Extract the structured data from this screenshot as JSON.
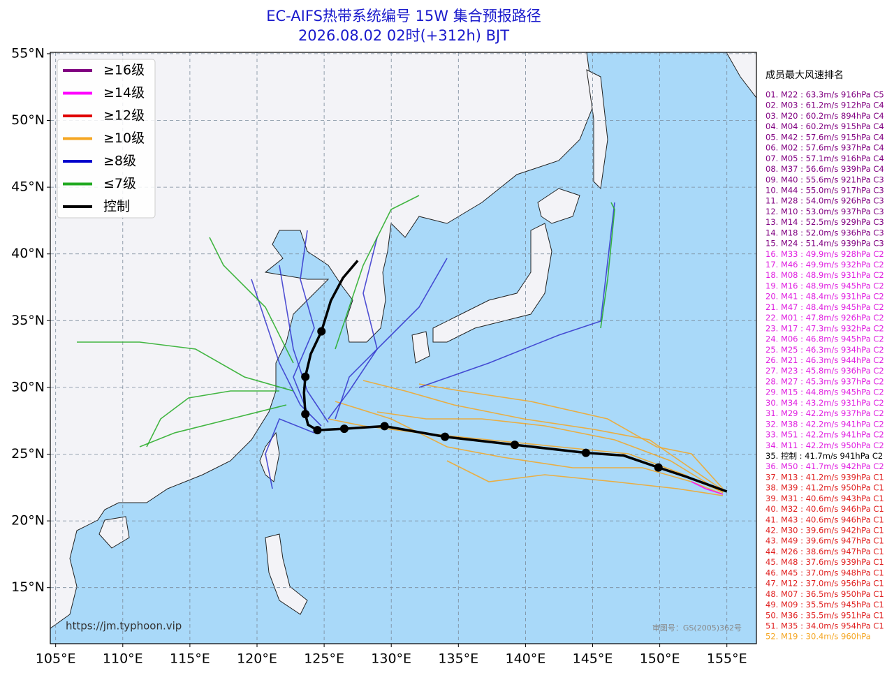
{
  "chart_data": {
    "type": "track-map",
    "title": "EC-AIFS热带系统编号 15W 集合预报路径",
    "subtitle": "2026.08.02 02时(+312h) BJT",
    "xlim": [
      104.6,
      157.2
    ],
    "ylim": [
      10.8,
      55.1
    ],
    "xticks": [
      {
        "value": 105,
        "label": "105°E"
      },
      {
        "value": 110,
        "label": "110°E"
      },
      {
        "value": 115,
        "label": "115°E"
      },
      {
        "value": 120,
        "label": "120°E"
      },
      {
        "value": 125,
        "label": "125°E"
      },
      {
        "value": 130,
        "label": "130°E"
      },
      {
        "value": 135,
        "label": "135°E"
      },
      {
        "value": 140,
        "label": "140°E"
      },
      {
        "value": 145,
        "label": "145°E"
      },
      {
        "value": 150,
        "label": "150°E"
      },
      {
        "value": 155,
        "label": "155°E"
      }
    ],
    "yticks": [
      {
        "value": 15,
        "label": "15°N"
      },
      {
        "value": 20,
        "label": "20°N"
      },
      {
        "value": 25,
        "label": "25°N"
      },
      {
        "value": 30,
        "label": "30°N"
      },
      {
        "value": 35,
        "label": "35°N"
      },
      {
        "value": 40,
        "label": "40°N"
      },
      {
        "value": 45,
        "label": "45°N"
      },
      {
        "value": 50,
        "label": "50°N"
      },
      {
        "value": 55,
        "label": "55°N"
      }
    ],
    "grid": true,
    "legend": [
      {
        "label": "≥16级",
        "color": "#800080"
      },
      {
        "label": "≥14级",
        "color": "#ff00ff"
      },
      {
        "label": "≥12级",
        "color": "#e00000"
      },
      {
        "label": "≥10级",
        "color": "#f5a623"
      },
      {
        "label": "≥8级",
        "color": "#0000cc"
      },
      {
        "label": "≤7级",
        "color": "#22aa22"
      },
      {
        "label": "控制",
        "color": "#000000"
      }
    ],
    "control_track": {
      "color": "#000000",
      "lon": [
        155.0,
        152.0,
        149.9,
        147.3,
        144.5,
        139.2,
        134.0,
        129.5,
        126.5,
        124.5,
        123.8,
        123.6,
        123.5,
        123.6,
        124.0,
        124.8,
        125.5,
        126.4,
        127.5
      ],
      "lat": [
        22.2,
        23.3,
        24.0,
        24.9,
        25.1,
        25.7,
        26.3,
        27.1,
        26.9,
        26.8,
        27.2,
        28.0,
        29.6,
        30.8,
        32.5,
        34.2,
        36.5,
        38.2,
        39.5
      ]
    },
    "control_positions": {
      "lon": [
        149.9,
        144.5,
        139.2,
        134.0,
        129.5,
        126.5,
        124.5,
        123.6,
        123.6,
        124.8
      ],
      "lat": [
        24.0,
        25.1,
        25.7,
        26.3,
        27.1,
        26.9,
        26.8,
        28.0,
        30.8,
        34.2
      ]
    },
    "ranking_title": "成员最大风速排名",
    "ranking": [
      {
        "text": "01. M22 : 63.3m/s 916hPa C5",
        "color": "#800080"
      },
      {
        "text": "02. M03 : 61.2m/s 912hPa C4",
        "color": "#800080"
      },
      {
        "text": "03. M20 : 60.2m/s 894hPa C4",
        "color": "#800080"
      },
      {
        "text": "04. M04 : 60.2m/s 915hPa C4",
        "color": "#800080"
      },
      {
        "text": "05. M42 : 57.6m/s 915hPa C4",
        "color": "#800080"
      },
      {
        "text": "06. M02 : 57.6m/s 937hPa C4",
        "color": "#800080"
      },
      {
        "text": "07. M05 : 57.1m/s 916hPa C4",
        "color": "#800080"
      },
      {
        "text": "08. M37 : 56.6m/s 939hPa C4",
        "color": "#800080"
      },
      {
        "text": "09. M40 : 55.6m/s 921hPa C3",
        "color": "#800080"
      },
      {
        "text": "10. M44 : 55.0m/s 917hPa C3",
        "color": "#800080"
      },
      {
        "text": "11. M28 : 54.0m/s 926hPa C3",
        "color": "#800080"
      },
      {
        "text": "12. M10 : 53.0m/s 937hPa C3",
        "color": "#800080"
      },
      {
        "text": "13. M14 : 52.5m/s 929hPa C3",
        "color": "#800080"
      },
      {
        "text": "14. M18 : 52.0m/s 936hPa C3",
        "color": "#800080"
      },
      {
        "text": "15. M24 : 51.4m/s 939hPa C3",
        "color": "#800080"
      },
      {
        "text": "16. M33 : 49.9m/s 928hPa C2",
        "color": "#e020e0"
      },
      {
        "text": "17. M46 : 49.9m/s 932hPa C2",
        "color": "#e020e0"
      },
      {
        "text": "18. M08 : 48.9m/s 931hPa C2",
        "color": "#e020e0"
      },
      {
        "text": "19. M16 : 48.9m/s 945hPa C2",
        "color": "#e020e0"
      },
      {
        "text": "20. M41 : 48.4m/s 931hPa C2",
        "color": "#e020e0"
      },
      {
        "text": "21. M47 : 48.4m/s 945hPa C2",
        "color": "#e020e0"
      },
      {
        "text": "22. M01 : 47.8m/s 926hPa C2",
        "color": "#e020e0"
      },
      {
        "text": "23. M17 : 47.3m/s 932hPa C2",
        "color": "#e020e0"
      },
      {
        "text": "24. M06 : 46.8m/s 945hPa C2",
        "color": "#e020e0"
      },
      {
        "text": "25. M25 : 46.3m/s 934hPa C2",
        "color": "#e020e0"
      },
      {
        "text": "26. M21 : 46.3m/s 944hPa C2",
        "color": "#e020e0"
      },
      {
        "text": "27. M23 : 45.8m/s 936hPa C2",
        "color": "#e020e0"
      },
      {
        "text": "28. M27 : 45.3m/s 937hPa C2",
        "color": "#e020e0"
      },
      {
        "text": "29. M15 : 44.8m/s 945hPa C2",
        "color": "#e020e0"
      },
      {
        "text": "30. M34 : 43.2m/s 931hPa C2",
        "color": "#e020e0"
      },
      {
        "text": "31. M29 : 42.2m/s 937hPa C2",
        "color": "#e020e0"
      },
      {
        "text": "32. M38 : 42.2m/s 941hPa C2",
        "color": "#e020e0"
      },
      {
        "text": "33. M51 : 42.2m/s 941hPa C2",
        "color": "#e020e0"
      },
      {
        "text": "34. M11 : 42.2m/s 950hPa C2",
        "color": "#e020e0"
      },
      {
        "text": "35. 控制 : 41.7m/s 941hPa C2",
        "color": "#000000"
      },
      {
        "text": "36. M50 : 41.7m/s 942hPa C2",
        "color": "#e020e0"
      },
      {
        "text": "37. M13 : 41.2m/s 939hPa C1",
        "color": "#e02020"
      },
      {
        "text": "38. M39 : 41.2m/s 950hPa C1",
        "color": "#e02020"
      },
      {
        "text": "39. M31 : 40.6m/s 943hPa C1",
        "color": "#e02020"
      },
      {
        "text": "40. M32 : 40.6m/s 946hPa C1",
        "color": "#e02020"
      },
      {
        "text": "41. M43 : 40.6m/s 946hPa C1",
        "color": "#e02020"
      },
      {
        "text": "42. M30 : 39.6m/s 942hPa C1",
        "color": "#e02020"
      },
      {
        "text": "43. M49 : 39.6m/s 947hPa C1",
        "color": "#e02020"
      },
      {
        "text": "44. M26 : 38.6m/s 947hPa C1",
        "color": "#e02020"
      },
      {
        "text": "45. M48 : 37.6m/s 939hPa C1",
        "color": "#e02020"
      },
      {
        "text": "46. M45 : 37.0m/s 948hPa C1",
        "color": "#e02020"
      },
      {
        "text": "47. M12 : 37.0m/s 956hPa C1",
        "color": "#e02020"
      },
      {
        "text": "48. M07 : 36.5m/s 950hPa C1",
        "color": "#e02020"
      },
      {
        "text": "49. M09 : 35.5m/s 945hPa C1",
        "color": "#e02020"
      },
      {
        "text": "50. M36 : 35.5m/s 951hPa C1",
        "color": "#e02020"
      },
      {
        "text": "51. M35 : 34.0m/s 954hPa C1",
        "color": "#e02020"
      },
      {
        "text": "52. M19 : 30.4m/s 960hPa",
        "color": "#f5a623"
      }
    ],
    "watermark": "https://jm.typhoon.vip",
    "map_approval": "审图号：GS(2005)362号"
  }
}
